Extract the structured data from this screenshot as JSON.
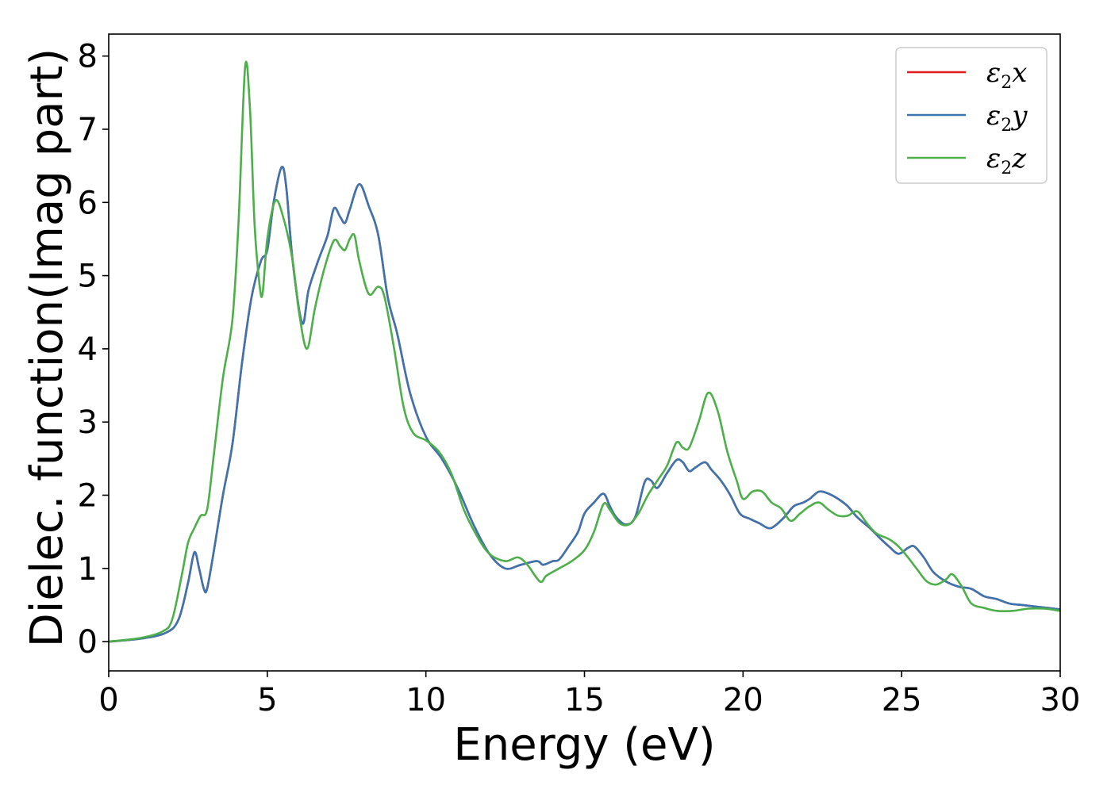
{
  "chart_data": {
    "type": "line",
    "xlabel": "Energy (eV)",
    "ylabel": "Dielec. function(Imag part)",
    "xlim": [
      0,
      30
    ],
    "ylim": [
      -0.4,
      8.3
    ],
    "xticks": [
      0,
      5,
      10,
      15,
      20,
      25,
      30
    ],
    "yticks": [
      0,
      1,
      2,
      3,
      4,
      5,
      6,
      7,
      8
    ],
    "legend_position": "top-right",
    "grid": false,
    "series": [
      {
        "name": "ε2x",
        "symbol": "ε",
        "sub": "2",
        "axis": "x",
        "color": "#e41a1c",
        "points": [
          [
            0,
            0
          ],
          [
            1,
            0.04
          ],
          [
            1.8,
            0.12
          ],
          [
            2.2,
            0.3
          ],
          [
            2.5,
            0.8
          ],
          [
            2.7,
            1.22
          ],
          [
            2.85,
            1.0
          ],
          [
            3.0,
            0.72
          ],
          [
            3.1,
            0.72
          ],
          [
            3.3,
            1.2
          ],
          [
            3.6,
            2.0
          ],
          [
            3.9,
            2.7
          ],
          [
            4.2,
            3.8
          ],
          [
            4.5,
            4.7
          ],
          [
            4.8,
            5.2
          ],
          [
            5.0,
            5.35
          ],
          [
            5.2,
            6.0
          ],
          [
            5.45,
            6.48
          ],
          [
            5.6,
            6.2
          ],
          [
            5.8,
            5.2
          ],
          [
            6.1,
            4.35
          ],
          [
            6.3,
            4.8
          ],
          [
            6.6,
            5.2
          ],
          [
            6.9,
            5.55
          ],
          [
            7.1,
            5.92
          ],
          [
            7.3,
            5.8
          ],
          [
            7.45,
            5.72
          ],
          [
            7.6,
            5.9
          ],
          [
            7.9,
            6.25
          ],
          [
            8.2,
            5.95
          ],
          [
            8.5,
            5.55
          ],
          [
            8.8,
            4.7
          ],
          [
            9.1,
            4.2
          ],
          [
            9.5,
            3.4
          ],
          [
            10.0,
            2.8
          ],
          [
            10.5,
            2.5
          ],
          [
            11.0,
            2.1
          ],
          [
            11.5,
            1.6
          ],
          [
            12.0,
            1.2
          ],
          [
            12.5,
            1.0
          ],
          [
            13.0,
            1.05
          ],
          [
            13.5,
            1.1
          ],
          [
            13.7,
            1.05
          ],
          [
            14.0,
            1.1
          ],
          [
            14.2,
            1.12
          ],
          [
            14.5,
            1.3
          ],
          [
            14.8,
            1.5
          ],
          [
            15.0,
            1.75
          ],
          [
            15.3,
            1.9
          ],
          [
            15.6,
            2.02
          ],
          [
            15.8,
            1.85
          ],
          [
            16.0,
            1.7
          ],
          [
            16.3,
            1.6
          ],
          [
            16.6,
            1.7
          ],
          [
            16.9,
            2.18
          ],
          [
            17.1,
            2.2
          ],
          [
            17.3,
            2.1
          ],
          [
            17.6,
            2.3
          ],
          [
            17.9,
            2.48
          ],
          [
            18.1,
            2.45
          ],
          [
            18.3,
            2.33
          ],
          [
            18.5,
            2.38
          ],
          [
            18.8,
            2.45
          ],
          [
            19.0,
            2.35
          ],
          [
            19.3,
            2.2
          ],
          [
            19.6,
            2.0
          ],
          [
            19.9,
            1.75
          ],
          [
            20.2,
            1.68
          ],
          [
            20.5,
            1.62
          ],
          [
            20.8,
            1.55
          ],
          [
            21.0,
            1.58
          ],
          [
            21.3,
            1.7
          ],
          [
            21.6,
            1.85
          ],
          [
            21.9,
            1.9
          ],
          [
            22.1,
            1.95
          ],
          [
            22.4,
            2.05
          ],
          [
            22.7,
            2.02
          ],
          [
            23.0,
            1.95
          ],
          [
            23.3,
            1.85
          ],
          [
            23.6,
            1.7
          ],
          [
            24.0,
            1.55
          ],
          [
            24.3,
            1.42
          ],
          [
            24.6,
            1.3
          ],
          [
            24.9,
            1.2
          ],
          [
            25.2,
            1.28
          ],
          [
            25.4,
            1.3
          ],
          [
            25.7,
            1.15
          ],
          [
            26.0,
            0.95
          ],
          [
            26.4,
            0.82
          ],
          [
            26.8,
            0.75
          ],
          [
            27.2,
            0.72
          ],
          [
            27.6,
            0.62
          ],
          [
            28.0,
            0.58
          ],
          [
            28.4,
            0.52
          ],
          [
            28.8,
            0.5
          ],
          [
            29.2,
            0.48
          ],
          [
            29.6,
            0.46
          ],
          [
            30.0,
            0.44
          ]
        ]
      },
      {
        "name": "ε2y",
        "symbol": "ε",
        "sub": "2",
        "axis": "y",
        "color": "#3b75af",
        "points": [
          [
            0,
            0
          ],
          [
            1,
            0.04
          ],
          [
            1.8,
            0.12
          ],
          [
            2.2,
            0.3
          ],
          [
            2.5,
            0.8
          ],
          [
            2.7,
            1.22
          ],
          [
            2.85,
            1.0
          ],
          [
            3.0,
            0.72
          ],
          [
            3.1,
            0.72
          ],
          [
            3.3,
            1.2
          ],
          [
            3.6,
            2.0
          ],
          [
            3.9,
            2.7
          ],
          [
            4.2,
            3.8
          ],
          [
            4.5,
            4.7
          ],
          [
            4.8,
            5.2
          ],
          [
            5.0,
            5.35
          ],
          [
            5.2,
            6.0
          ],
          [
            5.45,
            6.48
          ],
          [
            5.6,
            6.2
          ],
          [
            5.8,
            5.2
          ],
          [
            6.1,
            4.35
          ],
          [
            6.3,
            4.8
          ],
          [
            6.6,
            5.2
          ],
          [
            6.9,
            5.55
          ],
          [
            7.1,
            5.92
          ],
          [
            7.3,
            5.8
          ],
          [
            7.45,
            5.72
          ],
          [
            7.6,
            5.9
          ],
          [
            7.9,
            6.25
          ],
          [
            8.2,
            5.95
          ],
          [
            8.5,
            5.55
          ],
          [
            8.8,
            4.7
          ],
          [
            9.1,
            4.2
          ],
          [
            9.5,
            3.4
          ],
          [
            10.0,
            2.8
          ],
          [
            10.5,
            2.5
          ],
          [
            11.0,
            2.1
          ],
          [
            11.5,
            1.6
          ],
          [
            12.0,
            1.2
          ],
          [
            12.5,
            1.0
          ],
          [
            13.0,
            1.05
          ],
          [
            13.5,
            1.1
          ],
          [
            13.7,
            1.05
          ],
          [
            14.0,
            1.1
          ],
          [
            14.2,
            1.12
          ],
          [
            14.5,
            1.3
          ],
          [
            14.8,
            1.5
          ],
          [
            15.0,
            1.75
          ],
          [
            15.3,
            1.9
          ],
          [
            15.6,
            2.02
          ],
          [
            15.8,
            1.85
          ],
          [
            16.0,
            1.7
          ],
          [
            16.3,
            1.6
          ],
          [
            16.6,
            1.7
          ],
          [
            16.9,
            2.18
          ],
          [
            17.1,
            2.2
          ],
          [
            17.3,
            2.1
          ],
          [
            17.6,
            2.3
          ],
          [
            17.9,
            2.48
          ],
          [
            18.1,
            2.45
          ],
          [
            18.3,
            2.33
          ],
          [
            18.5,
            2.38
          ],
          [
            18.8,
            2.45
          ],
          [
            19.0,
            2.35
          ],
          [
            19.3,
            2.2
          ],
          [
            19.6,
            2.0
          ],
          [
            19.9,
            1.75
          ],
          [
            20.2,
            1.68
          ],
          [
            20.5,
            1.62
          ],
          [
            20.8,
            1.55
          ],
          [
            21.0,
            1.58
          ],
          [
            21.3,
            1.7
          ],
          [
            21.6,
            1.85
          ],
          [
            21.9,
            1.9
          ],
          [
            22.1,
            1.95
          ],
          [
            22.4,
            2.05
          ],
          [
            22.7,
            2.02
          ],
          [
            23.0,
            1.95
          ],
          [
            23.3,
            1.85
          ],
          [
            23.6,
            1.7
          ],
          [
            24.0,
            1.55
          ],
          [
            24.3,
            1.42
          ],
          [
            24.6,
            1.3
          ],
          [
            24.9,
            1.2
          ],
          [
            25.2,
            1.28
          ],
          [
            25.4,
            1.3
          ],
          [
            25.7,
            1.15
          ],
          [
            26.0,
            0.95
          ],
          [
            26.4,
            0.82
          ],
          [
            26.8,
            0.75
          ],
          [
            27.2,
            0.72
          ],
          [
            27.6,
            0.62
          ],
          [
            28.0,
            0.58
          ],
          [
            28.4,
            0.52
          ],
          [
            28.8,
            0.5
          ],
          [
            29.2,
            0.48
          ],
          [
            29.6,
            0.46
          ],
          [
            30.0,
            0.44
          ]
        ]
      },
      {
        "name": "ε2z",
        "symbol": "ε",
        "sub": "2",
        "axis": "z",
        "color": "#4daf4a",
        "points": [
          [
            0,
            0
          ],
          [
            1,
            0.05
          ],
          [
            1.7,
            0.14
          ],
          [
            2.0,
            0.3
          ],
          [
            2.3,
            0.9
          ],
          [
            2.5,
            1.35
          ],
          [
            2.7,
            1.55
          ],
          [
            2.9,
            1.72
          ],
          [
            3.1,
            1.8
          ],
          [
            3.3,
            2.5
          ],
          [
            3.6,
            3.6
          ],
          [
            3.9,
            4.4
          ],
          [
            4.1,
            5.8
          ],
          [
            4.3,
            7.85
          ],
          [
            4.45,
            7.3
          ],
          [
            4.6,
            5.7
          ],
          [
            4.75,
            4.9
          ],
          [
            4.85,
            4.75
          ],
          [
            5.0,
            5.5
          ],
          [
            5.25,
            6.02
          ],
          [
            5.5,
            5.8
          ],
          [
            5.8,
            5.2
          ],
          [
            6.0,
            4.5
          ],
          [
            6.25,
            4.0
          ],
          [
            6.5,
            4.55
          ],
          [
            6.8,
            5.1
          ],
          [
            7.1,
            5.48
          ],
          [
            7.3,
            5.4
          ],
          [
            7.45,
            5.35
          ],
          [
            7.6,
            5.5
          ],
          [
            7.75,
            5.55
          ],
          [
            7.9,
            5.2
          ],
          [
            8.2,
            4.75
          ],
          [
            8.5,
            4.85
          ],
          [
            8.7,
            4.7
          ],
          [
            9.0,
            4.0
          ],
          [
            9.3,
            3.2
          ],
          [
            9.6,
            2.85
          ],
          [
            10.0,
            2.75
          ],
          [
            10.4,
            2.6
          ],
          [
            10.8,
            2.3
          ],
          [
            11.2,
            1.8
          ],
          [
            11.6,
            1.45
          ],
          [
            12.0,
            1.2
          ],
          [
            12.5,
            1.1
          ],
          [
            12.9,
            1.15
          ],
          [
            13.2,
            1.05
          ],
          [
            13.6,
            0.82
          ],
          [
            13.8,
            0.9
          ],
          [
            14.2,
            1.0
          ],
          [
            14.6,
            1.1
          ],
          [
            15.0,
            1.25
          ],
          [
            15.3,
            1.5
          ],
          [
            15.6,
            1.88
          ],
          [
            15.8,
            1.8
          ],
          [
            16.1,
            1.62
          ],
          [
            16.4,
            1.6
          ],
          [
            16.7,
            1.75
          ],
          [
            17.0,
            2.0
          ],
          [
            17.3,
            2.2
          ],
          [
            17.6,
            2.4
          ],
          [
            17.9,
            2.72
          ],
          [
            18.1,
            2.65
          ],
          [
            18.3,
            2.65
          ],
          [
            18.6,
            3.0
          ],
          [
            18.9,
            3.4
          ],
          [
            19.2,
            3.15
          ],
          [
            19.5,
            2.6
          ],
          [
            19.8,
            2.2
          ],
          [
            20.0,
            1.95
          ],
          [
            20.3,
            2.05
          ],
          [
            20.6,
            2.05
          ],
          [
            20.9,
            1.9
          ],
          [
            21.2,
            1.82
          ],
          [
            21.5,
            1.65
          ],
          [
            21.8,
            1.75
          ],
          [
            22.1,
            1.85
          ],
          [
            22.4,
            1.9
          ],
          [
            22.7,
            1.8
          ],
          [
            23.0,
            1.72
          ],
          [
            23.3,
            1.72
          ],
          [
            23.6,
            1.78
          ],
          [
            23.9,
            1.62
          ],
          [
            24.2,
            1.48
          ],
          [
            24.6,
            1.4
          ],
          [
            24.9,
            1.3
          ],
          [
            25.2,
            1.15
          ],
          [
            25.5,
            0.98
          ],
          [
            25.8,
            0.82
          ],
          [
            26.1,
            0.78
          ],
          [
            26.4,
            0.85
          ],
          [
            26.6,
            0.92
          ],
          [
            26.9,
            0.75
          ],
          [
            27.2,
            0.52
          ],
          [
            27.6,
            0.46
          ],
          [
            28.0,
            0.42
          ],
          [
            28.5,
            0.42
          ],
          [
            29.0,
            0.45
          ],
          [
            29.5,
            0.45
          ],
          [
            30.0,
            0.42
          ]
        ]
      }
    ]
  }
}
